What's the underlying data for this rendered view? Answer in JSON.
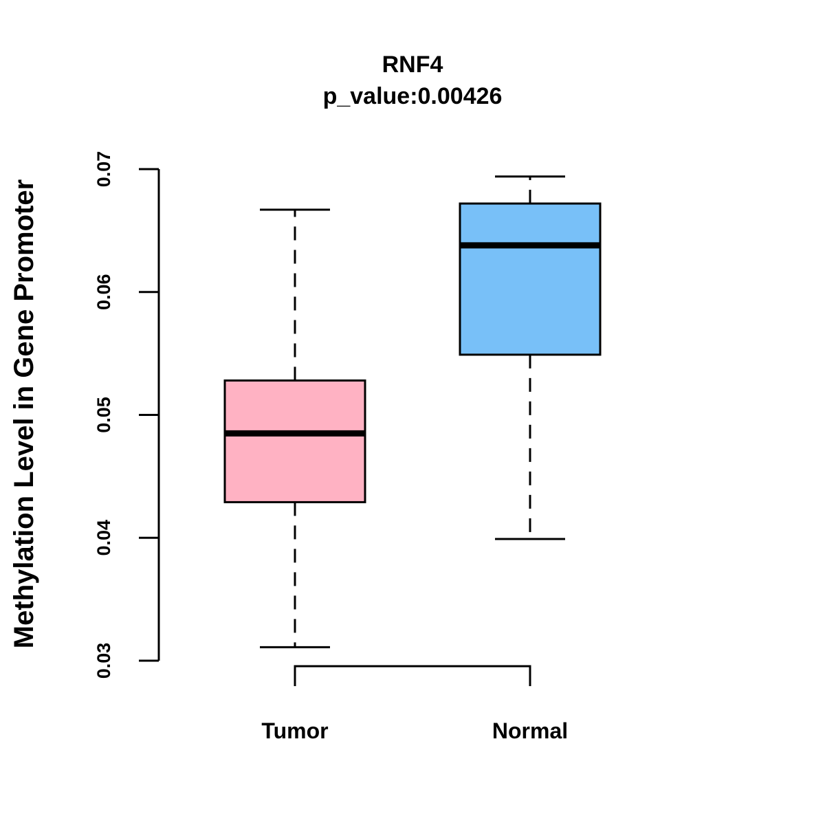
{
  "chart_data": {
    "type": "boxplot",
    "title": "RNF4",
    "subtitle": "p_value:0.00426",
    "xlabel": "",
    "ylabel": "Methylation Level in Gene Promoter",
    "ylim": [
      0.03,
      0.07
    ],
    "yticks": [
      0.03,
      0.04,
      0.05,
      0.06,
      0.07
    ],
    "ytick_labels": [
      "0.03",
      "0.04",
      "0.05",
      "0.06",
      "0.07"
    ],
    "grid": false,
    "categories": [
      "Tumor",
      "Normal"
    ],
    "boxes": [
      {
        "name": "Tumor",
        "whisker_low": 0.0311,
        "q1": 0.0429,
        "median": 0.0485,
        "q3": 0.0528,
        "whisker_high": 0.0667,
        "color": "#FFB2C3"
      },
      {
        "name": "Normal",
        "whisker_low": 0.0399,
        "q1": 0.0549,
        "median": 0.0638,
        "q3": 0.0672,
        "whisker_high": 0.0694,
        "color": "#78C0F8"
      }
    ],
    "comparison_bracket": {
      "from": "Tumor",
      "to": "Normal"
    }
  }
}
